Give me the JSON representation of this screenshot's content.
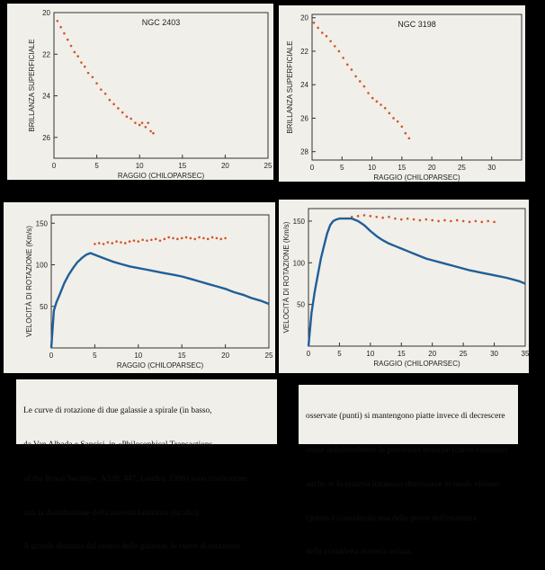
{
  "chart_data": [
    {
      "type": "scatter",
      "title": "NGC 2403",
      "xlabel": "RAGGIO (CHILOPARSEC)",
      "ylabel": "BRILLANZA SUPERFICIALE",
      "xlim": [
        0,
        25
      ],
      "ylim": [
        20,
        27
      ],
      "x_ticks": [
        0,
        5,
        10,
        15,
        20,
        25
      ],
      "y_ticks": [
        20,
        22,
        24,
        26
      ],
      "y_inverted": true,
      "points": [
        [
          0.4,
          20.4
        ],
        [
          0.8,
          20.7
        ],
        [
          1.2,
          21.0
        ],
        [
          1.6,
          21.3
        ],
        [
          2,
          21.6
        ],
        [
          2.4,
          21.9
        ],
        [
          2.8,
          22.1
        ],
        [
          3.2,
          22.4
        ],
        [
          3.6,
          22.6
        ],
        [
          4,
          22.9
        ],
        [
          4.5,
          23.1
        ],
        [
          5,
          23.4
        ],
        [
          5.5,
          23.7
        ],
        [
          6,
          23.9
        ],
        [
          6.5,
          24.2
        ],
        [
          7,
          24.4
        ],
        [
          7.5,
          24.6
        ],
        [
          8,
          24.8
        ],
        [
          8.5,
          25.0
        ],
        [
          9,
          25.1
        ],
        [
          9.5,
          25.3
        ],
        [
          10,
          25.4
        ],
        [
          10.3,
          25.3
        ],
        [
          10.7,
          25.5
        ],
        [
          11,
          25.3
        ],
        [
          11.3,
          25.7
        ],
        [
          11.6,
          25.8
        ]
      ]
    },
    {
      "type": "scatter",
      "title": "NGC 3198",
      "xlabel": "RAGGIO (CHILOPARSEC)",
      "ylabel": "BRILLANZA SUPERFICIALE",
      "xlim": [
        0,
        35
      ],
      "ylim": [
        19.8,
        28.5
      ],
      "x_ticks": [
        0,
        5,
        10,
        15,
        20,
        25,
        30
      ],
      "y_ticks": [
        20,
        22,
        24,
        26,
        28
      ],
      "y_inverted": true,
      "points": [
        [
          0.3,
          20.3
        ],
        [
          1,
          20.6
        ],
        [
          1.7,
          20.9
        ],
        [
          2.4,
          21.1
        ],
        [
          3.1,
          21.4
        ],
        [
          3.8,
          21.7
        ],
        [
          4.5,
          22.0
        ],
        [
          5.2,
          22.4
        ],
        [
          5.9,
          22.8
        ],
        [
          6.6,
          23.1
        ],
        [
          7.3,
          23.5
        ],
        [
          8,
          23.8
        ],
        [
          8.7,
          24.1
        ],
        [
          9.4,
          24.5
        ],
        [
          10.1,
          24.8
        ],
        [
          10.8,
          25.0
        ],
        [
          11.5,
          25.2
        ],
        [
          12.2,
          25.4
        ],
        [
          12.9,
          25.7
        ],
        [
          13.6,
          26.0
        ],
        [
          14.3,
          26.2
        ],
        [
          15,
          26.5
        ],
        [
          15.6,
          26.9
        ],
        [
          16.2,
          27.2
        ]
      ]
    },
    {
      "type": "line",
      "title": "",
      "xlabel": "RAGGIO (CHILOPARSEC)",
      "ylabel": "VELOCITÀ DI ROTAZIONE (Km/s)",
      "xlim": [
        0,
        25
      ],
      "ylim": [
        0,
        160
      ],
      "x_ticks": [
        0,
        5,
        10,
        15,
        20,
        25
      ],
      "y_ticks": [
        50,
        100,
        150
      ],
      "series": [
        {
          "role": "observed",
          "color": "#d2552a",
          "x": [
            5,
            5.5,
            6,
            6.5,
            7,
            7.5,
            8,
            8.5,
            9,
            9.5,
            10,
            10.5,
            11,
            11.5,
            12,
            12.5,
            13,
            13.5,
            14,
            14.5,
            15,
            15.5,
            16,
            16.5,
            17,
            17.5,
            18,
            18.5,
            19,
            19.5,
            20
          ],
          "y": [
            125,
            126,
            125,
            127,
            126,
            128,
            127,
            126,
            128,
            129,
            128,
            130,
            129,
            130,
            131,
            129,
            131,
            133,
            132,
            131,
            132,
            133,
            132,
            131,
            133,
            132,
            131,
            133,
            132,
            131,
            132
          ]
        },
        {
          "role": "predicted",
          "color": "#1f5f99",
          "x": [
            0,
            0.3,
            0.6,
            1,
            1.5,
            2,
            2.5,
            3,
            3.5,
            4,
            4.5,
            5,
            6,
            7,
            8,
            9,
            10,
            11,
            12,
            13,
            14,
            15,
            16,
            17,
            18,
            19,
            20,
            21,
            22,
            23,
            24,
            25
          ],
          "y": [
            0,
            45,
            55,
            65,
            78,
            88,
            96,
            103,
            108,
            112,
            114,
            112,
            108,
            104,
            101,
            98,
            96,
            94,
            92,
            90,
            88,
            86,
            83,
            80,
            77,
            74,
            71,
            67,
            64,
            60,
            57,
            53
          ]
        }
      ]
    },
    {
      "type": "line",
      "title": "",
      "xlabel": "RAGGIO (CHILOPARSEC)",
      "ylabel": "VELOCITÀ DI ROTAZIONE (Km/s)",
      "xlim": [
        0,
        35
      ],
      "ylim": [
        0,
        165
      ],
      "x_ticks": [
        0,
        5,
        10,
        15,
        20,
        25,
        30,
        35
      ],
      "y_ticks": [
        50,
        100,
        150
      ],
      "series": [
        {
          "role": "observed",
          "color": "#d2552a",
          "x": [
            7,
            8,
            9,
            10,
            11,
            12,
            13,
            14,
            15,
            16,
            17,
            18,
            19,
            20,
            21,
            22,
            23,
            24,
            25,
            26,
            27,
            28,
            29,
            30
          ],
          "y": [
            155,
            156,
            157,
            156,
            155,
            154,
            155,
            153,
            152,
            153,
            152,
            151,
            152,
            151,
            150,
            151,
            150,
            151,
            150,
            149,
            150,
            149,
            150,
            149
          ]
        },
        {
          "role": "predicted",
          "color": "#1f5f99",
          "x": [
            0,
            0.5,
            1,
            1.5,
            2,
            2.5,
            3,
            3.5,
            4,
            4.5,
            5,
            6,
            7,
            8,
            9,
            10,
            11,
            12,
            13,
            14,
            15,
            16,
            17,
            18,
            19,
            20,
            22,
            24,
            26,
            28,
            30,
            32,
            34,
            35
          ],
          "y": [
            0,
            40,
            65,
            85,
            105,
            120,
            135,
            145,
            150,
            152,
            153,
            153,
            153,
            150,
            145,
            138,
            132,
            127,
            123,
            120,
            117,
            114,
            111,
            108,
            105,
            103,
            99,
            95,
            91,
            88,
            85,
            82,
            78,
            75
          ]
        }
      ]
    }
  ],
  "caption": {
    "left": [
      "Le curve di rotazione di due galassie a spirale (in basso,",
      "da Van Albada e Sancisi, in «Philosophical Transactions",
      "of the Royal Society», A320, 447, Londra, 1986) sono confrontate",
      "con la distribuzione della materia luminosa (in alto).",
      "A grande distanza dal centro delle galassie, le curve di rotazione"
    ],
    "right": [
      "osservate (punti) si mantengono piatte invece di decrescere",
      "come indicherebbero le previsioni teoriche (curve continue)",
      "anche se la materia luminosa diminuisce in modo vistoso.",
      "Questa è considerata una delle prove dell'esistenza",
      "della cosiddetta materia oscura."
    ]
  },
  "colors": {
    "background": "#000000",
    "paper": "#f1efe9",
    "observed": "#d2552a",
    "predicted": "#1f5f99"
  }
}
